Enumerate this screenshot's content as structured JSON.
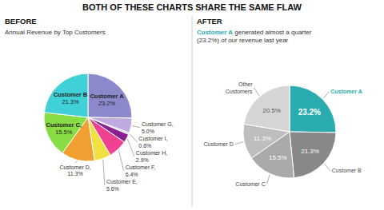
{
  "title": "BOTH OF THESE CHARTS SHARE THE SAME FLAW",
  "chart_data": [
    {
      "type": "pie",
      "title": "BEFORE",
      "subtitle": "Annual Revenue by Top Customers",
      "categories": [
        "Customer A",
        "Customer G,",
        "Customer I,",
        "Customer H,",
        "Customer F,",
        "Customer E,",
        "Customer D,",
        "Customer C,",
        "Customer B"
      ],
      "values": [
        23.2,
        5.0,
        0.6,
        2.9,
        6.4,
        5.6,
        11.3,
        15.5,
        21.3
      ],
      "value_labels": [
        "23.2%",
        "5.0%",
        "0.6%",
        "2.9%",
        "6.4%",
        "5.6%",
        "11.3%",
        "15.5%",
        "21.3%"
      ],
      "colors": [
        "#8b88cc",
        "#c0a8e0",
        "#d8c8f0",
        "#882090",
        "#f04090",
        "#f0e040",
        "#f0a030",
        "#88dd44",
        "#40d0d8"
      ],
      "data_labels": true
    },
    {
      "type": "pie",
      "title": "AFTER",
      "subtitle": [
        "Customer A",
        " generated almost a quarter\n(23.2%) of our revenue last year"
      ],
      "categories": [
        "Customer A",
        "Customer B",
        "Customer C",
        "Customer D",
        "Other\nCustomers"
      ],
      "values": [
        23.2,
        21.3,
        15.5,
        11.3,
        20.5
      ],
      "value_labels": [
        "23.2%",
        "21.3%",
        "15.5%",
        "11.3%",
        "20.5%"
      ],
      "colors": [
        "#2aabb0",
        "#888888",
        "#aaaaaa",
        "#bebebe",
        "#d5d5d5"
      ],
      "data_labels": true
    }
  ]
}
